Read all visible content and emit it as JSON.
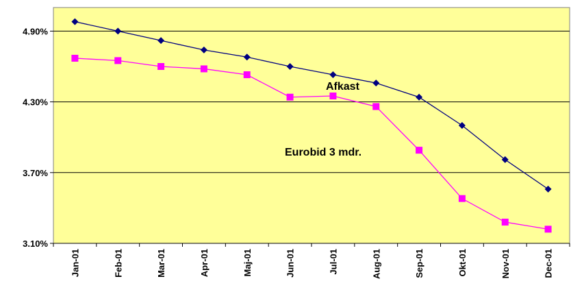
{
  "chart_data": {
    "type": "line",
    "title": "",
    "xlabel": "",
    "ylabel": "",
    "categories": [
      "Jan-01",
      "Feb-01",
      "Mar-01",
      "Apr-01",
      "Maj-01",
      "Jun-01",
      "Jul-01",
      "Aug-01",
      "Sep-01",
      "Okt-01",
      "Nov-01",
      "Dec-01"
    ],
    "ylim": [
      3.1,
      5.1
    ],
    "yticks": [
      3.1,
      3.7,
      4.3,
      4.9
    ],
    "ytick_labels": [
      "3.10%",
      "3.70%",
      "4.30%",
      "4.90%"
    ],
    "grid": true,
    "plot_background": "#FFFF99",
    "series": [
      {
        "name": "Afkast",
        "color": "#000080",
        "marker": "diamond",
        "values": [
          4.98,
          4.9,
          4.82,
          4.74,
          4.68,
          4.6,
          4.53,
          4.46,
          4.34,
          4.1,
          3.81,
          3.56
        ]
      },
      {
        "name": "Eurobid 3 mdr.",
        "color": "#FF00FF",
        "marker": "square",
        "values": [
          4.67,
          4.65,
          4.6,
          4.58,
          4.53,
          4.34,
          4.35,
          4.26,
          3.89,
          3.48,
          3.28,
          3.22
        ]
      }
    ]
  }
}
